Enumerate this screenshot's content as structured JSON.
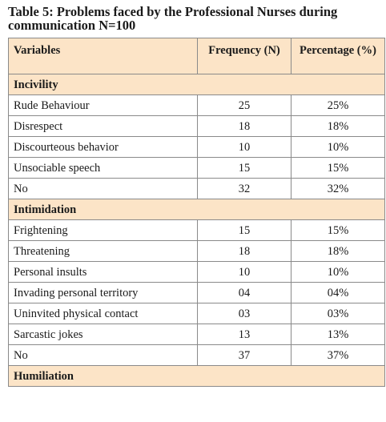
{
  "caption": "Table 5: Problems faced by the Professional Nurses during communication  N=100",
  "headers": {
    "variables": "Variables",
    "frequency": "Frequency (N)",
    "percentage": "Percentage (%)"
  },
  "rows": [
    {
      "type": "group",
      "label": "Incivility"
    },
    {
      "type": "item",
      "label": "Rude Behaviour",
      "frequency": "25",
      "percentage": "25%"
    },
    {
      "type": "item",
      "label": "Disrespect",
      "frequency": "18",
      "percentage": "18%"
    },
    {
      "type": "item",
      "label": "Discourteous behavior",
      "frequency": "10",
      "percentage": "10%"
    },
    {
      "type": "item",
      "label": "Unsociable speech",
      "frequency": "15",
      "percentage": "15%"
    },
    {
      "type": "item",
      "label": "No",
      "frequency": "32",
      "percentage": "32%"
    },
    {
      "type": "group",
      "label": "Intimidation"
    },
    {
      "type": "item",
      "label": "Frightening",
      "frequency": "15",
      "percentage": "15%"
    },
    {
      "type": "item",
      "label": "Threatening",
      "frequency": "18",
      "percentage": "18%"
    },
    {
      "type": "item",
      "label": "Personal insults",
      "frequency": "10",
      "percentage": "10%"
    },
    {
      "type": "item",
      "label": "Invading personal territory",
      "frequency": "04",
      "percentage": "04%"
    },
    {
      "type": "item",
      "label": "Uninvited physical contact",
      "frequency": "03",
      "percentage": "03%"
    },
    {
      "type": "item",
      "label": "Sarcastic jokes",
      "frequency": "13",
      "percentage": "13%"
    },
    {
      "type": "item",
      "label": "No",
      "frequency": "37",
      "percentage": "37%"
    },
    {
      "type": "group",
      "label": "Humiliation"
    }
  ],
  "colors": {
    "header_bg": "#fce4c7",
    "border": "#8a8a8a"
  }
}
